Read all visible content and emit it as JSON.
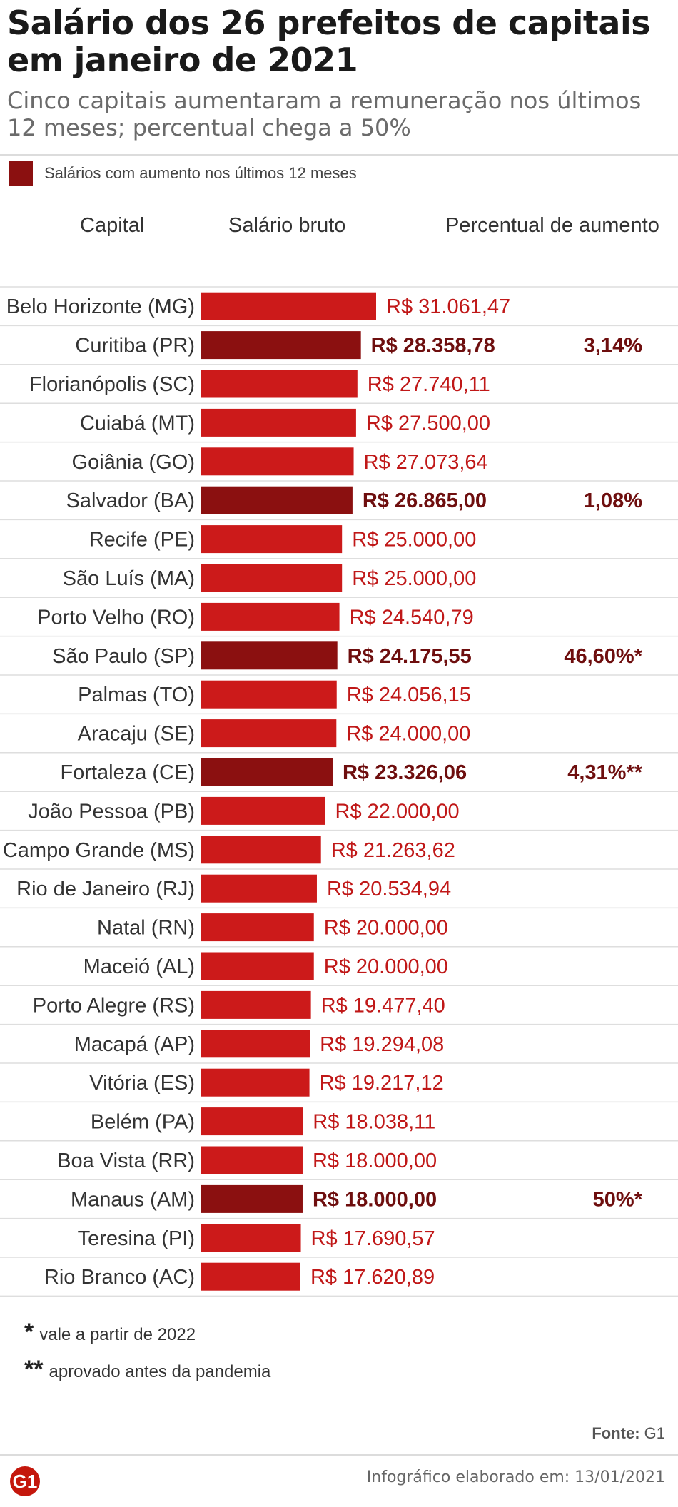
{
  "header": {
    "title": "Salário dos 26 prefeitos de capitais em janeiro de 2021",
    "subtitle": "Cinco capitais aumentaram a remuneração nos últimos 12 meses; percentual chega a 50%"
  },
  "legend": {
    "label": "Salários com aumento nos últimos 12 meses",
    "color": "#8b1010"
  },
  "columns": {
    "capital": "Capital",
    "salary": "Salário bruto",
    "increase": "Percentual de aumento"
  },
  "colors": {
    "bar": "#cc1a1a",
    "bar_increase": "#8b1010",
    "label": "#c01818",
    "label_increase": "#6e0e0e"
  },
  "chart_data": {
    "type": "bar",
    "orientation": "horizontal",
    "categories": [
      "Belo Horizonte (MG)",
      "Curitiba (PR)",
      "Florianópolis (SC)",
      "Cuiabá (MT)",
      "Goiânia (GO)",
      "Salvador (BA)",
      "Recife (PE)",
      "São Luís (MA)",
      "Porto Velho (RO)",
      "São Paulo (SP)",
      "Palmas (TO)",
      "Aracaju (SE)",
      "Fortaleza (CE)",
      "João Pessoa (PB)",
      "Campo Grande (MS)",
      "Rio de Janeiro (RJ)",
      "Natal (RN)",
      "Maceió (AL)",
      "Porto Alegre (RS)",
      "Macapá (AP)",
      "Vitória (ES)",
      "Belém (PA)",
      "Boa Vista (RR)",
      "Manaus (AM)",
      "Teresina (PI)",
      "Rio Branco (AC)"
    ],
    "values": [
      31061.47,
      28358.78,
      27740.11,
      27500.0,
      27073.64,
      26865.0,
      25000.0,
      25000.0,
      24540.79,
      24175.55,
      24056.15,
      24000.0,
      23326.06,
      22000.0,
      21263.62,
      20534.94,
      20000.0,
      20000.0,
      19477.4,
      19294.08,
      19217.12,
      18038.11,
      18000.0,
      18000.0,
      17690.57,
      17620.89
    ],
    "value_labels": [
      "R$ 31.061,47",
      "R$ 28.358,78",
      "R$ 27.740,11",
      "R$ 27.500,00",
      "R$ 27.073,64",
      "R$ 26.865,00",
      "R$ 25.000,00",
      "R$ 25.000,00",
      "R$ 24.540,79",
      "R$ 24.175,55",
      "R$ 24.056,15",
      "R$ 24.000,00",
      "R$ 23.326,06",
      "R$ 22.000,00",
      "R$ 21.263,62",
      "R$ 20.534,94",
      "R$ 20.000,00",
      "R$ 20.000,00",
      "R$ 19.477,40",
      "R$ 19.294,08",
      "R$ 19.217,12",
      "R$ 18.038,11",
      "R$ 18.000,00",
      "R$ 18.000,00",
      "R$ 17.690,57",
      "R$ 17.620,89"
    ],
    "increase": [
      "",
      "3,14%",
      "",
      "",
      "",
      "1,08%",
      "",
      "",
      "",
      "46,60%*",
      "",
      "",
      "4,31%**",
      "",
      "",
      "",
      "",
      "",
      "",
      "",
      "",
      "",
      "",
      "50%*",
      "",
      ""
    ],
    "highlighted": [
      false,
      true,
      false,
      false,
      false,
      true,
      false,
      false,
      false,
      true,
      false,
      false,
      true,
      false,
      false,
      false,
      false,
      false,
      false,
      false,
      false,
      false,
      false,
      true,
      false,
      false
    ],
    "xlabel": "",
    "ylabel": "",
    "grid": false
  },
  "footnotes": [
    {
      "mark": "*",
      "text": "vale a partir de 2022"
    },
    {
      "mark": "**",
      "text": "aprovado antes da pandemia"
    }
  ],
  "source": {
    "label": "Fonte:",
    "value": "G1"
  },
  "logo": {
    "text": "G1",
    "color": "#c4170c"
  },
  "credit": "Infográfico elaborado em: 13/01/2021"
}
